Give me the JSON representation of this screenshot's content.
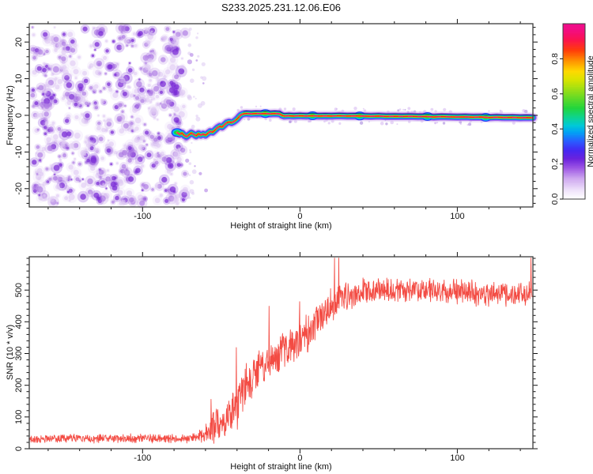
{
  "window": {
    "title": "S233.2025.231.12.06.E06"
  },
  "frame_color": "#3c3c3c",
  "text_color": "#111111",
  "chart_data": [
    {
      "type": "heatmap",
      "title": "S233.2025.231.12.06.E06",
      "xlabel": "Height of straight line (km)",
      "ylabel": "Frequency (Hz)",
      "x_range": [
        -172,
        148
      ],
      "y_range": [
        -25,
        25
      ],
      "x_major_ticks": [
        -100,
        0,
        100
      ],
      "x_minor_step": 20,
      "y_major_ticks": [
        -20,
        -10,
        0,
        10,
        20
      ],
      "y_minor_step": 2,
      "grid": false,
      "legend": "colorbar-right",
      "noise_region_km": [
        -172,
        -62
      ],
      "noise_seed": 20250231,
      "noise_palette": [
        "#ddc8f3",
        "#a873e2",
        "#7a2bd6"
      ],
      "colorbar": {
        "label": "Normalized spectral amplitude",
        "ticks": [
          0.0,
          0.2,
          0.4,
          0.6,
          0.8
        ],
        "range": [
          0.0,
          1.0
        ],
        "stops": [
          [
            0,
            "#ffffff"
          ],
          [
            0.05,
            "#f0e4fb"
          ],
          [
            0.12,
            "#cda6ef"
          ],
          [
            0.18,
            "#9b54e4"
          ],
          [
            0.23,
            "#6b22dd"
          ],
          [
            0.28,
            "#4428f2"
          ],
          [
            0.33,
            "#2a5cff"
          ],
          [
            0.38,
            "#019ff5"
          ],
          [
            0.42,
            "#00c9d8"
          ],
          [
            0.47,
            "#0ed48a"
          ],
          [
            0.52,
            "#22d53c"
          ],
          [
            0.6,
            "#7edc1e"
          ],
          [
            0.68,
            "#d8e400"
          ],
          [
            0.73,
            "#ffd900"
          ],
          [
            0.79,
            "#ff9100"
          ],
          [
            0.85,
            "#ff3c0a"
          ],
          [
            0.91,
            "#fb1250"
          ],
          [
            0.96,
            "#f30d7e"
          ],
          [
            1.0,
            "#ef0d8c"
          ]
        ]
      },
      "trace": {
        "description": "Signal ridge: red-magenta core (amplitude ~0.9) with yellow-green-cyan-blue-violet halo; emerges from noise near -78 km at -5 Hz, rises to ~0 Hz by -37 km, stays near 0 Hz to +148 km",
        "points_km_hz": [
          [
            -78,
            -4.7
          ],
          [
            -76.5,
            -5.2
          ],
          [
            -75,
            -4.8
          ],
          [
            -73.5,
            -5.5
          ],
          [
            -72,
            -5.8
          ],
          [
            -70.5,
            -5.3
          ],
          [
            -69,
            -4.8
          ],
          [
            -67.5,
            -5.2
          ],
          [
            -66,
            -5.6
          ],
          [
            -64.5,
            -5.0
          ],
          [
            -63,
            -5.4
          ],
          [
            -61.5,
            -5.1
          ],
          [
            -60,
            -5.4
          ],
          [
            -58.5,
            -4.9
          ],
          [
            -57,
            -4.4
          ],
          [
            -55.5,
            -4.6
          ],
          [
            -54,
            -4.0
          ],
          [
            -52.5,
            -3.4
          ],
          [
            -51,
            -3.0
          ],
          [
            -49.5,
            -3.2
          ],
          [
            -48,
            -2.6
          ],
          [
            -46.5,
            -2.0
          ],
          [
            -45,
            -1.8
          ],
          [
            -43.5,
            -2.0
          ],
          [
            -42,
            -1.7
          ],
          [
            -40.5,
            -1.2
          ],
          [
            -39.5,
            -0.8
          ],
          [
            -38.5,
            -0.3
          ],
          [
            -37.5,
            0.1
          ],
          [
            -36,
            0.4
          ],
          [
            -34,
            0.5
          ],
          [
            -31,
            0.4
          ],
          [
            -28,
            0.5
          ],
          [
            -25,
            0.45
          ],
          [
            -22,
            0.5
          ],
          [
            -19,
            0.4
          ],
          [
            -16,
            0.5
          ],
          [
            -13,
            0.4
          ],
          [
            -11.5,
            0.0
          ],
          [
            -10,
            -0.2
          ],
          [
            -7,
            -0.1
          ],
          [
            -4,
            -0.2
          ],
          [
            0,
            -0.1
          ],
          [
            4,
            -0.2
          ],
          [
            8,
            -0.1
          ],
          [
            12,
            -0.2
          ],
          [
            16,
            -0.15
          ],
          [
            20,
            -0.2
          ],
          [
            25,
            -0.1
          ],
          [
            30,
            -0.2
          ],
          [
            35,
            -0.15
          ],
          [
            40,
            -0.2
          ],
          [
            45,
            -0.25
          ],
          [
            50,
            -0.2
          ],
          [
            55,
            -0.3
          ],
          [
            60,
            -0.25
          ],
          [
            65,
            -0.3
          ],
          [
            70,
            -0.25
          ],
          [
            75,
            -0.35
          ],
          [
            80,
            -0.3
          ],
          [
            85,
            -0.45
          ],
          [
            90,
            -0.35
          ],
          [
            95,
            -0.4
          ],
          [
            100,
            -0.45
          ],
          [
            105,
            -0.4
          ],
          [
            110,
            -0.5
          ],
          [
            115,
            -0.45
          ],
          [
            120,
            -0.6
          ],
          [
            125,
            -0.5
          ],
          [
            130,
            -0.6
          ],
          [
            135,
            -0.55
          ],
          [
            140,
            -0.65
          ],
          [
            144,
            -0.6
          ],
          [
            148,
            -0.65
          ]
        ],
        "bump_km": [
          -78,
          -22,
          8,
          38,
          81,
          118
        ]
      }
    },
    {
      "type": "line",
      "xlabel": "Height of straight line (km)",
      "ylabel": "SNR (10 * v/v)",
      "x_range": [
        -172,
        148
      ],
      "y_range": [
        0,
        605
      ],
      "x_major_ticks": [
        -100,
        0,
        100
      ],
      "x_minor_step": 20,
      "y_major_ticks": [
        0,
        100,
        200,
        300,
        400,
        500
      ],
      "y_minor_step": 20,
      "grid": false,
      "series": [
        {
          "name": "SNR",
          "color": "#f2423a",
          "description": "Noisy SNR curve: flat ~30 below -65 km, spiky rise from -58 km to +30 km, plateau ~490 with +/-45 noise to +148 km, one spike to ~600 near +25 km",
          "envelope_km_mean_amp": [
            [
              -172,
              32,
              16
            ],
            [
              -75,
              32,
              16
            ],
            [
              -65,
              36,
              18
            ],
            [
              -58,
              55,
              45
            ],
            [
              -54,
              82,
              75
            ],
            [
              -50,
              66,
              42
            ],
            [
              -45,
              95,
              65
            ],
            [
              -40,
              130,
              82
            ],
            [
              -36,
              180,
              100
            ],
            [
              -32,
              205,
              72
            ],
            [
              -28,
              245,
              62
            ],
            [
              -24,
              255,
              75
            ],
            [
              -20,
              275,
              65
            ],
            [
              -16,
              285,
              60
            ],
            [
              -12,
              300,
              80
            ],
            [
              -8,
              320,
              70
            ],
            [
              -4,
              335,
              75
            ],
            [
              0,
              350,
              80
            ],
            [
              4,
              360,
              75
            ],
            [
              8,
              385,
              70
            ],
            [
              12,
              415,
              65
            ],
            [
              16,
              435,
              62
            ],
            [
              20,
              455,
              60
            ],
            [
              25,
              470,
              56
            ],
            [
              30,
              480,
              52
            ],
            [
              40,
              495,
              46
            ],
            [
              60,
              495,
              46
            ],
            [
              90,
              500,
              46
            ],
            [
              120,
              490,
              46
            ],
            [
              148,
              490,
              46
            ]
          ]
        }
      ]
    }
  ]
}
